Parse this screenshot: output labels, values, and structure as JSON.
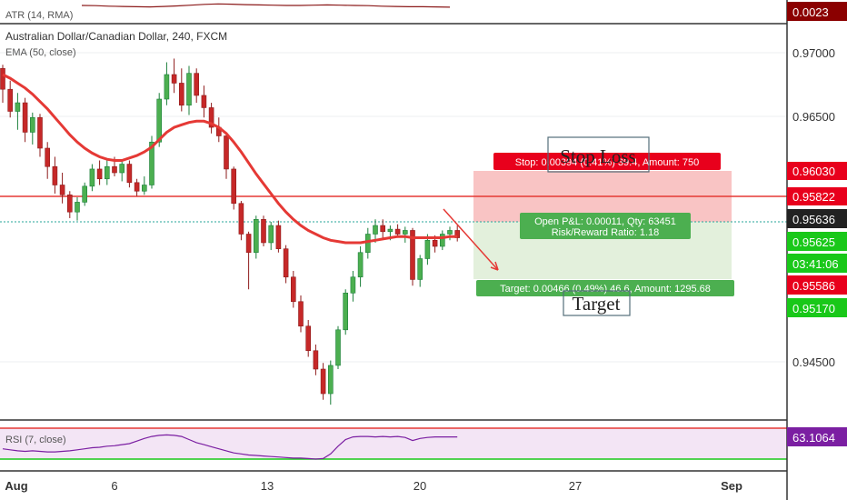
{
  "header": {
    "symbol_title": "Australian Dollar/Canadian Dollar, 240, FXCM",
    "ema_label": "EMA (50, close)",
    "atr_label": "ATR (14, RMA)",
    "rsi_label": "RSI (7, close)"
  },
  "price_axis": {
    "ticks": [
      "0.97000",
      "0.96500",
      "0.94500"
    ]
  },
  "badges": {
    "atr_value": "0.0023",
    "stop": "0.96030",
    "hline": "0.95822",
    "current": "0.95636",
    "close": "0.95625",
    "timer": "03:41:06",
    "low": "0.95586",
    "target": "0.95170",
    "rsi_value": "63.1064"
  },
  "time_axis": {
    "labels": [
      "Aug",
      "6",
      "13",
      "20",
      "27",
      "Sep"
    ]
  },
  "position": {
    "stop_text": "Stop: 0.00394 (0.41%) 39.4, Amount: 750",
    "pnl_text": "Open P&L: 0.00011, Qty: 63451",
    "rr_text": "Risk/Reward Ratio: 1.18",
    "target_text": "Target: 0.00466 (0.49%) 46.6, Amount: 1295.68",
    "stop_note": "Stop Loss",
    "target_note": "Target"
  },
  "colors": {
    "up": "#26a69a",
    "up_fill": "#4caf50",
    "down": "#ef5350",
    "down_fill": "#c62828",
    "ema": "#e53935",
    "hline": "#e53935",
    "stop_zone": "#f9c4c4",
    "target_zone": "#e3f0dc",
    "badge_red": "#e8001c",
    "badge_green": "#19c819",
    "badge_dark": "#222222",
    "rsi_fill": "#f3e5f5",
    "rsi_line": "#7b1fa2",
    "atr_line": "#8b1a1a"
  },
  "chart_data": {
    "type": "candlestick",
    "symbol": "AUDCAD",
    "ylim": [
      0.9415,
      0.9735
    ],
    "date_range": [
      "2018-07-31",
      "2018-08-21"
    ],
    "candles": [
      [
        0.97,
        0.9703,
        0.9672,
        0.9683
      ],
      [
        0.9683,
        0.969,
        0.966,
        0.9665
      ],
      [
        0.9665,
        0.968,
        0.965,
        0.9672
      ],
      [
        0.9672,
        0.9676,
        0.964,
        0.9648
      ],
      [
        0.9648,
        0.9664,
        0.9638,
        0.966
      ],
      [
        0.966,
        0.9663,
        0.9628,
        0.9635
      ],
      [
        0.9635,
        0.964,
        0.961,
        0.962
      ],
      [
        0.962,
        0.9628,
        0.9598,
        0.9605
      ],
      [
        0.9605,
        0.9615,
        0.959,
        0.9597
      ],
      [
        0.9597,
        0.96,
        0.9578,
        0.9583
      ],
      [
        0.9583,
        0.9595,
        0.9576,
        0.9591
      ],
      [
        0.9591,
        0.9607,
        0.9588,
        0.9604
      ],
      [
        0.9604,
        0.9622,
        0.96,
        0.9618
      ],
      [
        0.9618,
        0.9625,
        0.9605,
        0.961
      ],
      [
        0.961,
        0.9625,
        0.9605,
        0.962
      ],
      [
        0.962,
        0.9628,
        0.9612,
        0.9615
      ],
      [
        0.9615,
        0.9626,
        0.9608,
        0.9622
      ],
      [
        0.9622,
        0.9625,
        0.9603,
        0.9607
      ],
      [
        0.9607,
        0.961,
        0.9596,
        0.96
      ],
      [
        0.96,
        0.9612,
        0.9597,
        0.9605
      ],
      [
        0.9605,
        0.9645,
        0.9602,
        0.964
      ],
      [
        0.964,
        0.968,
        0.9636,
        0.9675
      ],
      [
        0.9675,
        0.9705,
        0.967,
        0.9695
      ],
      [
        0.9695,
        0.9708,
        0.968,
        0.9688
      ],
      [
        0.9688,
        0.97,
        0.9665,
        0.967
      ],
      [
        0.967,
        0.9702,
        0.9662,
        0.9696
      ],
      [
        0.9696,
        0.97,
        0.9672,
        0.9678
      ],
      [
        0.9678,
        0.9686,
        0.966,
        0.9668
      ],
      [
        0.9668,
        0.9672,
        0.9647,
        0.9652
      ],
      [
        0.9652,
        0.966,
        0.964,
        0.9645
      ],
      [
        0.9645,
        0.9648,
        0.961,
        0.9618
      ],
      [
        0.9618,
        0.962,
        0.9585,
        0.959
      ],
      [
        0.959,
        0.9592,
        0.956,
        0.9565
      ],
      [
        0.9565,
        0.9567,
        0.952,
        0.955
      ],
      [
        0.955,
        0.958,
        0.9545,
        0.9577
      ],
      [
        0.9577,
        0.958,
        0.9555,
        0.9558
      ],
      [
        0.9558,
        0.9575,
        0.9552,
        0.9572
      ],
      [
        0.9572,
        0.9576,
        0.955,
        0.9553
      ],
      [
        0.9553,
        0.9556,
        0.9525,
        0.953
      ],
      [
        0.953,
        0.9535,
        0.9505,
        0.951
      ],
      [
        0.951,
        0.9515,
        0.9485,
        0.949
      ],
      [
        0.949,
        0.9495,
        0.9465,
        0.947
      ],
      [
        0.947,
        0.9475,
        0.945,
        0.9455
      ],
      [
        0.9455,
        0.946,
        0.943,
        0.9435
      ],
      [
        0.9435,
        0.9462,
        0.9426,
        0.9458
      ],
      [
        0.9458,
        0.949,
        0.9455,
        0.9487
      ],
      [
        0.9487,
        0.952,
        0.9483,
        0.9517
      ],
      [
        0.9517,
        0.9535,
        0.951,
        0.953
      ],
      [
        0.953,
        0.9555,
        0.9522,
        0.955
      ],
      [
        0.955,
        0.957,
        0.9545,
        0.9565
      ],
      [
        0.9565,
        0.9577,
        0.9558,
        0.9572
      ],
      [
        0.9572,
        0.9577,
        0.9562,
        0.9567
      ],
      [
        0.9567,
        0.9572,
        0.956,
        0.9569
      ],
      [
        0.9569,
        0.9573,
        0.9562,
        0.9565
      ],
      [
        0.9565,
        0.9571,
        0.9558,
        0.9568
      ],
      [
        0.9568,
        0.957,
        0.9523,
        0.9528
      ],
      [
        0.9528,
        0.9548,
        0.9522,
        0.9545
      ],
      [
        0.9545,
        0.9565,
        0.954,
        0.956
      ],
      [
        0.956,
        0.9564,
        0.955,
        0.9555
      ],
      [
        0.9555,
        0.9568,
        0.9552,
        0.9565
      ],
      [
        0.9565,
        0.9571,
        0.956,
        0.9568
      ],
      [
        0.9568,
        0.9572,
        0.9559,
        0.9562
      ]
    ],
    "ema": [
      0.9695,
      0.9692,
      0.9688,
      0.9684,
      0.9679,
      0.9673,
      0.9667,
      0.966,
      0.9653,
      0.9646,
      0.964,
      0.9635,
      0.9631,
      0.9628,
      0.9626,
      0.9625,
      0.9625,
      0.9627,
      0.9629,
      0.9632,
      0.9636,
      0.9642,
      0.9648,
      0.9652,
      0.9654,
      0.9656,
      0.9657,
      0.9657,
      0.9655,
      0.9652,
      0.9647,
      0.964,
      0.9632,
      0.9623,
      0.9614,
      0.9606,
      0.9598,
      0.959,
      0.9583,
      0.9577,
      0.9572,
      0.9568,
      0.9565,
      0.9562,
      0.956,
      0.9559,
      0.9558,
      0.9558,
      0.9558,
      0.9559,
      0.956,
      0.9561,
      0.9562,
      0.9563,
      0.9563,
      0.9562,
      0.9562,
      0.9562,
      0.9562,
      0.9562,
      0.9563,
      0.9563
    ],
    "levels": {
      "stop": 0.9603,
      "hline": 0.95822,
      "current": 0.95636,
      "target": 0.9517
    },
    "rsi": {
      "bands": [
        80,
        20
      ],
      "value": 63.1064
    }
  }
}
